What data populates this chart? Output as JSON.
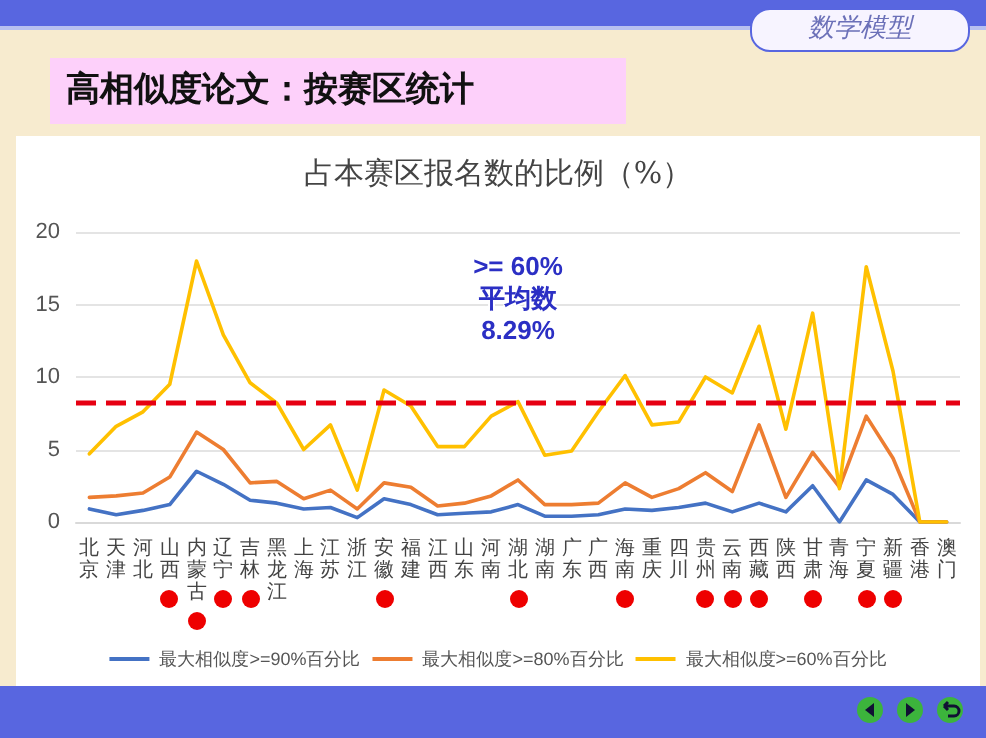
{
  "chart_data": {
    "type": "line",
    "title": "高相似度论文：按赛区统计",
    "subtitle": "占本赛区报名数的比例（%）",
    "annotations": [
      "数学模型"
    ],
    "categories": [
      "北京",
      "天津",
      "河北",
      "山西",
      "内蒙古",
      "辽宁",
      "吉林",
      "黑龙江",
      "上海",
      "江苏",
      "浙江",
      "安徽",
      "福建",
      "江西",
      "山东",
      "河南",
      "湖北",
      "湖南",
      "广东",
      "广西",
      "海南",
      "重庆",
      "四川",
      "贵州",
      "云南",
      "西藏",
      "陕西",
      "甘肃",
      "青海",
      "宁夏",
      "新疆",
      "香港",
      "澳门"
    ],
    "series": [
      {
        "name": "最大相似度>=90%百分比",
        "color": "#4472c4",
        "values": [
          0.9,
          0.5,
          0.8,
          1.2,
          3.5,
          2.6,
          1.5,
          1.3,
          0.9,
          1.0,
          0.3,
          1.6,
          1.2,
          0.5,
          0.6,
          0.7,
          1.2,
          0.4,
          0.4,
          0.5,
          0.9,
          0.8,
          1.0,
          1.3,
          0.7,
          1.3,
          0.7,
          2.5,
          0,
          2.9,
          1.9,
          0,
          0
        ]
      },
      {
        "name": "最大相似度>=80%百分比",
        "color": "#ed7d31",
        "values": [
          1.7,
          1.8,
          2.0,
          3.1,
          6.2,
          5.0,
          2.7,
          2.8,
          1.6,
          2.2,
          0.9,
          2.7,
          2.4,
          1.1,
          1.3,
          1.8,
          2.9,
          1.2,
          1.2,
          1.3,
          2.7,
          1.7,
          2.3,
          3.4,
          2.1,
          6.7,
          1.7,
          4.8,
          2.4,
          7.3,
          4.4,
          0,
          0
        ]
      },
      {
        "name": "最大相似度>=60%百分比",
        "color": "#ffc000",
        "values": [
          4.7,
          6.6,
          7.6,
          9.5,
          18.0,
          12.9,
          9.6,
          8.2,
          5.0,
          6.7,
          2.2,
          9.1,
          8.0,
          5.2,
          5.2,
          7.3,
          8.3,
          4.6,
          4.9,
          7.6,
          10.1,
          6.7,
          6.9,
          10.0,
          8.9,
          13.5,
          6.4,
          14.4,
          2.3,
          17.6,
          10.4,
          0,
          0
        ]
      }
    ],
    "ylim": [
      0,
      20
    ],
    "yticks": [
      0,
      5,
      10,
      15,
      20
    ],
    "grid": "y",
    "legend": "bottom",
    "marker": "none",
    "line_style": "solid",
    "ref_lines": [
      {
        "axis": "y",
        "value": 8.29,
        "label": ">= 60%\n平均数\n8.29%",
        "color": "#e60012",
        "line_style": "dashed"
      }
    ]
  }
}
